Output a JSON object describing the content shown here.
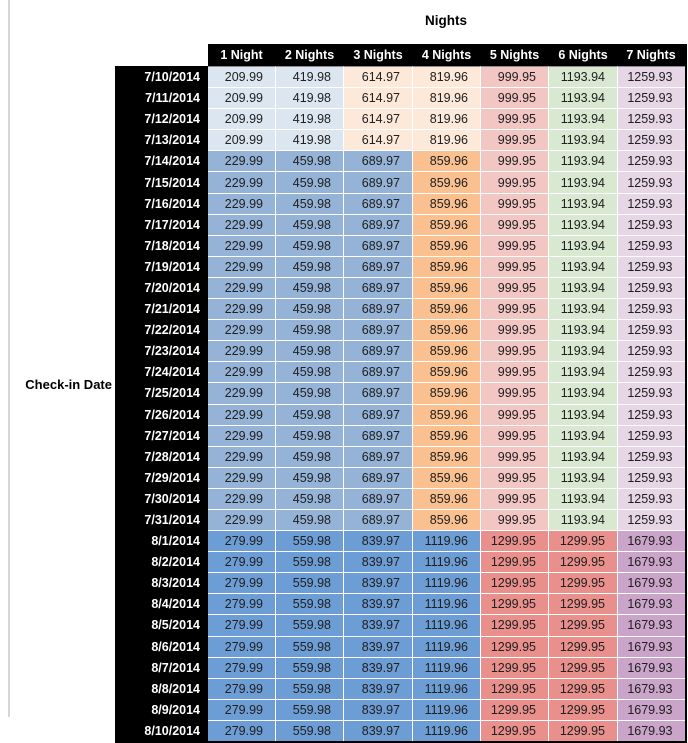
{
  "title": "Nights",
  "row_axis_label": "Check-in Date",
  "columns": [
    "1 Night",
    "2 Nights",
    "3 Nights",
    "4 Nights",
    "5 Nights",
    "6 Nights",
    "7 Nights"
  ],
  "palette": {
    "pale_blue": "#dce6f1",
    "pale_peach": "#fde9d9",
    "mid_blue": "#95b3d7",
    "orange": "#fac08f",
    "pale_pink": "#f2c6c3",
    "pale_green": "#d9e8d0",
    "pale_mauve": "#e7d6e6",
    "strong_blue": "#6d9dd5",
    "salmon": "#e9908c",
    "purple": "#cba4ca"
  },
  "header_bg": "#000000",
  "header_fg": "#ffffff",
  "tiers": {
    "A": {
      "values": [
        "209.99",
        "419.98",
        "614.97",
        "819.96",
        "999.95",
        "1193.94",
        "1259.93"
      ],
      "fills": [
        "pale_blue",
        "pale_blue",
        "pale_peach",
        "pale_peach",
        "pale_pink",
        "pale_green",
        "pale_mauve"
      ]
    },
    "B": {
      "values": [
        "229.99",
        "459.98",
        "689.97",
        "859.96",
        "999.95",
        "1193.94",
        "1259.93"
      ],
      "fills": [
        "mid_blue",
        "mid_blue",
        "mid_blue",
        "orange",
        "pale_pink",
        "pale_green",
        "pale_mauve"
      ]
    },
    "C": {
      "values": [
        "279.99",
        "559.98",
        "839.97",
        "1119.96",
        "1299.95",
        "1299.95",
        "1679.93"
      ],
      "fills": [
        "strong_blue",
        "strong_blue",
        "strong_blue",
        "strong_blue",
        "salmon",
        "salmon",
        "purple"
      ]
    }
  },
  "rows": [
    {
      "date": "7/10/2014",
      "tier": "A"
    },
    {
      "date": "7/11/2014",
      "tier": "A"
    },
    {
      "date": "7/12/2014",
      "tier": "A"
    },
    {
      "date": "7/13/2014",
      "tier": "A"
    },
    {
      "date": "7/14/2014",
      "tier": "B"
    },
    {
      "date": "7/15/2014",
      "tier": "B"
    },
    {
      "date": "7/16/2014",
      "tier": "B"
    },
    {
      "date": "7/17/2014",
      "tier": "B"
    },
    {
      "date": "7/18/2014",
      "tier": "B"
    },
    {
      "date": "7/19/2014",
      "tier": "B"
    },
    {
      "date": "7/20/2014",
      "tier": "B"
    },
    {
      "date": "7/21/2014",
      "tier": "B"
    },
    {
      "date": "7/22/2014",
      "tier": "B"
    },
    {
      "date": "7/23/2014",
      "tier": "B"
    },
    {
      "date": "7/24/2014",
      "tier": "B"
    },
    {
      "date": "7/25/2014",
      "tier": "B"
    },
    {
      "date": "7/26/2014",
      "tier": "B"
    },
    {
      "date": "7/27/2014",
      "tier": "B"
    },
    {
      "date": "7/28/2014",
      "tier": "B"
    },
    {
      "date": "7/29/2014",
      "tier": "B"
    },
    {
      "date": "7/30/2014",
      "tier": "B"
    },
    {
      "date": "7/31/2014",
      "tier": "B"
    },
    {
      "date": "8/1/2014",
      "tier": "C"
    },
    {
      "date": "8/2/2014",
      "tier": "C"
    },
    {
      "date": "8/3/2014",
      "tier": "C"
    },
    {
      "date": "8/4/2014",
      "tier": "C"
    },
    {
      "date": "8/5/2014",
      "tier": "C"
    },
    {
      "date": "8/6/2014",
      "tier": "C"
    },
    {
      "date": "8/7/2014",
      "tier": "C"
    },
    {
      "date": "8/8/2014",
      "tier": "C"
    },
    {
      "date": "8/9/2014",
      "tier": "C"
    },
    {
      "date": "8/10/2014",
      "tier": "C"
    }
  ]
}
